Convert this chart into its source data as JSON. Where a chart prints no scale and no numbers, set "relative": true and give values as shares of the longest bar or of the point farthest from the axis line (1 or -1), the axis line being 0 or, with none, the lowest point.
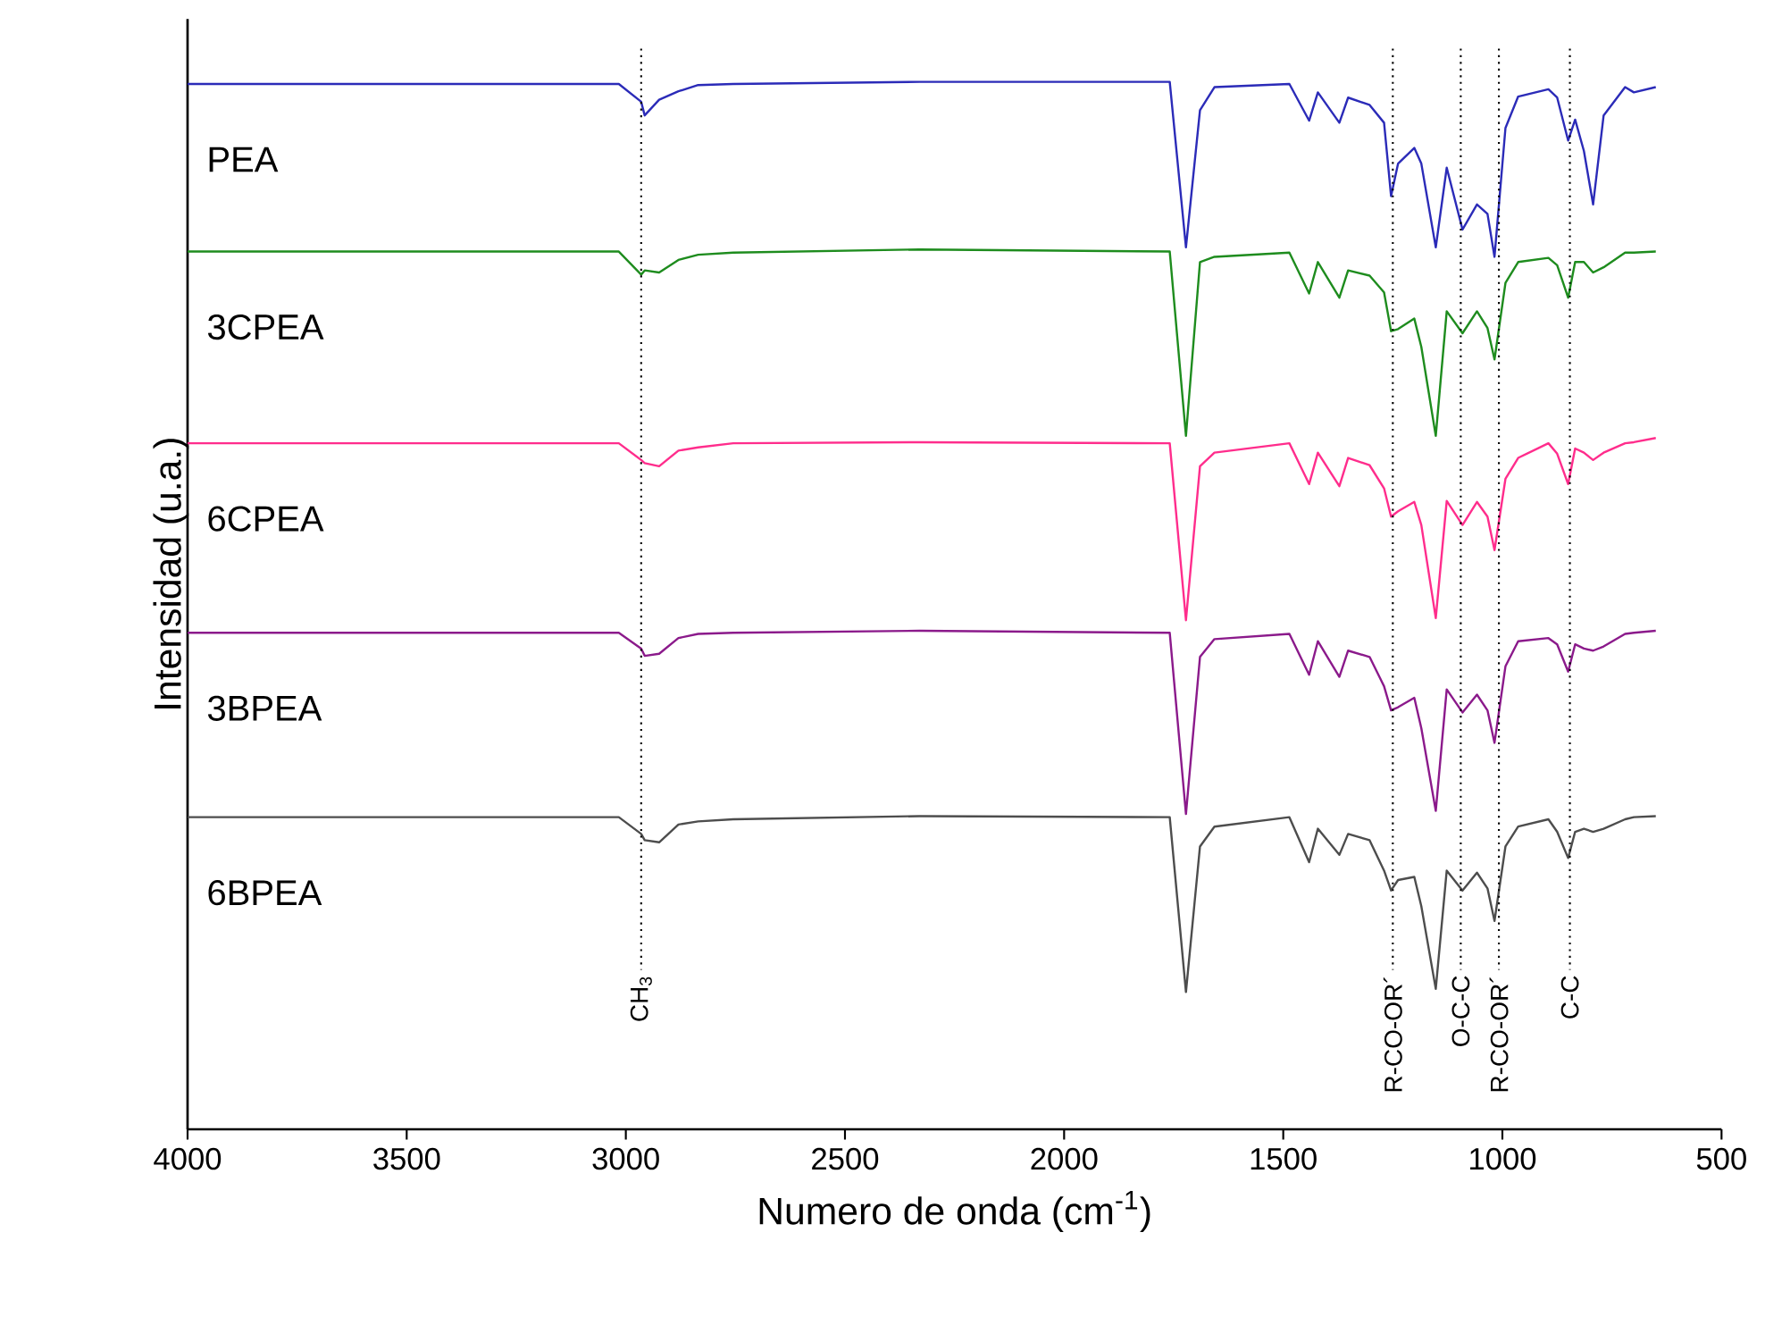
{
  "chart_data": {
    "type": "line",
    "relative": true,
    "xlabel": "Numero de onda (cm$^{-1}$)",
    "ylabel": "Intensidad (u.a.)",
    "xlim": [
      4000,
      500
    ],
    "xticks": [
      4000,
      3500,
      3000,
      2500,
      2000,
      1500,
      1000,
      500
    ],
    "x": [
      4000,
      3016,
      2965,
      2957,
      2924,
      2880,
      2835,
      2755,
      2330,
      1759,
      1722,
      1690,
      1657,
      1486,
      1441,
      1421,
      1372,
      1352,
      1303,
      1270,
      1254,
      1238,
      1201,
      1185,
      1152,
      1127,
      1091,
      1058,
      1034,
      1018,
      993,
      964,
      895,
      875,
      850,
      834,
      814,
      793,
      769,
      720,
      700,
      650
    ],
    "series": [
      {
        "name": "PEA",
        "color": "#2b2bb8",
        "values": [
          0.998,
          0.998,
          0.981,
          0.968,
          0.983,
          0.991,
          0.997,
          0.998,
          1.0,
          1.0,
          0.842,
          0.973,
          0.995,
          0.998,
          0.963,
          0.99,
          0.961,
          0.985,
          0.978,
          0.961,
          0.891,
          0.922,
          0.937,
          0.922,
          0.842,
          0.918,
          0.859,
          0.883,
          0.874,
          0.833,
          0.956,
          0.986,
          0.993,
          0.985,
          0.944,
          0.964,
          0.934,
          0.883,
          0.968,
          0.995,
          0.99,
          0.995
        ]
      },
      {
        "name": "3CPEA",
        "color": "#1e8c1e",
        "values": [
          0.838,
          0.838,
          0.816,
          0.82,
          0.818,
          0.83,
          0.835,
          0.837,
          0.84,
          0.838,
          0.662,
          0.828,
          0.833,
          0.837,
          0.798,
          0.828,
          0.794,
          0.82,
          0.815,
          0.799,
          0.762,
          0.764,
          0.774,
          0.747,
          0.662,
          0.781,
          0.76,
          0.781,
          0.765,
          0.735,
          0.808,
          0.828,
          0.832,
          0.825,
          0.794,
          0.828,
          0.828,
          0.818,
          0.823,
          0.837,
          0.837,
          0.838
        ]
      },
      {
        "name": "6CPEA",
        "color": "#ff2d8c",
        "values": [
          0.655,
          0.655,
          0.639,
          0.636,
          0.633,
          0.648,
          0.651,
          0.655,
          0.656,
          0.655,
          0.486,
          0.633,
          0.646,
          0.655,
          0.616,
          0.646,
          0.614,
          0.641,
          0.634,
          0.612,
          0.585,
          0.59,
          0.599,
          0.577,
          0.488,
          0.6,
          0.577,
          0.599,
          0.585,
          0.553,
          0.621,
          0.641,
          0.655,
          0.645,
          0.616,
          0.65,
          0.646,
          0.639,
          0.646,
          0.655,
          0.656,
          0.66
        ]
      },
      {
        "name": "3BPEA",
        "color": "#8b1a8b",
        "values": [
          0.474,
          0.474,
          0.459,
          0.452,
          0.454,
          0.469,
          0.473,
          0.474,
          0.476,
          0.474,
          0.301,
          0.451,
          0.468,
          0.473,
          0.434,
          0.466,
          0.432,
          0.457,
          0.451,
          0.423,
          0.4,
          0.403,
          0.412,
          0.383,
          0.304,
          0.42,
          0.398,
          0.415,
          0.4,
          0.369,
          0.442,
          0.466,
          0.469,
          0.463,
          0.437,
          0.463,
          0.459,
          0.457,
          0.461,
          0.473,
          0.474,
          0.476
        ]
      },
      {
        "name": "6BPEA",
        "color": "#4d4d4d",
        "values": [
          0.298,
          0.298,
          0.282,
          0.276,
          0.274,
          0.291,
          0.294,
          0.296,
          0.299,
          0.298,
          0.131,
          0.27,
          0.289,
          0.298,
          0.255,
          0.287,
          0.262,
          0.282,
          0.276,
          0.247,
          0.228,
          0.238,
          0.241,
          0.213,
          0.134,
          0.247,
          0.228,
          0.245,
          0.23,
          0.199,
          0.27,
          0.289,
          0.296,
          0.284,
          0.259,
          0.284,
          0.287,
          0.284,
          0.287,
          0.296,
          0.298,
          0.299
        ]
      }
    ],
    "ref_lines": [
      {
        "axis": "x",
        "value": 2965,
        "label": "CH$_{3}$",
        "line_style": "dotted",
        "color": "#000000"
      },
      {
        "axis": "x",
        "value": 1250,
        "label": "R-CO-OR´",
        "line_style": "dotted",
        "color": "#000000"
      },
      {
        "axis": "x",
        "value": 1095,
        "label": "O-C-C",
        "line_style": "dotted",
        "color": "#000000"
      },
      {
        "axis": "x",
        "value": 1008,
        "label": "R-CO-OR´",
        "line_style": "dotted",
        "color": "#000000"
      },
      {
        "axis": "x",
        "value": 846,
        "label": "C-C",
        "line_style": "dotted",
        "color": "#000000"
      }
    ]
  }
}
